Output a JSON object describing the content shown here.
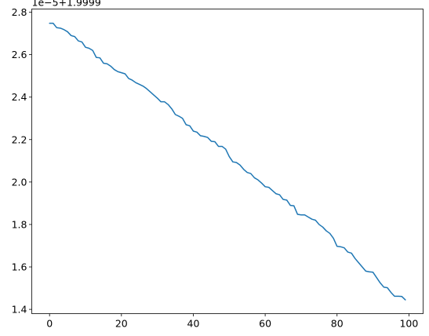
{
  "chart_data": {
    "type": "line",
    "title": "",
    "xlabel": "",
    "ylabel": "",
    "offset_text": "1e−5+1.9999",
    "xlim": [
      -4.95,
      103.95
    ],
    "ylim": [
      1.38,
      2.815
    ],
    "x_ticks": [
      0,
      20,
      40,
      60,
      80,
      100
    ],
    "x_tick_labels": [
      "0",
      "20",
      "40",
      "60",
      "80",
      "100"
    ],
    "y_ticks": [
      1.4,
      1.6,
      1.8,
      2.0,
      2.2,
      2.4,
      2.6,
      2.8
    ],
    "y_tick_labels": [
      "1.4",
      "1.6",
      "1.8",
      "2.0",
      "2.2",
      "2.4",
      "2.6",
      "2.8"
    ],
    "grid": false,
    "legend": "none",
    "series_color": "#1f77b4",
    "series": [
      {
        "name": "",
        "x": [
          0,
          1,
          2,
          3,
          4,
          5,
          6,
          7,
          8,
          9,
          10,
          11,
          12,
          13,
          14,
          15,
          16,
          17,
          18,
          19,
          20,
          21,
          22,
          23,
          24,
          25,
          26,
          27,
          28,
          29,
          30,
          31,
          32,
          33,
          34,
          35,
          36,
          37,
          38,
          39,
          40,
          41,
          42,
          43,
          44,
          45,
          46,
          47,
          48,
          49,
          50,
          51,
          52,
          53,
          54,
          55,
          56,
          57,
          58,
          59,
          60,
          61,
          62,
          63,
          64,
          65,
          66,
          67,
          68,
          69,
          70,
          71,
          72,
          73,
          74,
          75,
          76,
          77,
          78,
          79,
          80,
          81,
          82,
          83,
          84,
          85,
          86,
          87,
          88,
          89,
          90,
          91,
          92,
          93,
          94,
          95,
          96,
          97,
          98,
          99
        ],
        "y": [
          2.748,
          2.748,
          2.727,
          2.725,
          2.718,
          2.708,
          2.69,
          2.685,
          2.665,
          2.66,
          2.635,
          2.63,
          2.62,
          2.587,
          2.585,
          2.56,
          2.557,
          2.546,
          2.53,
          2.52,
          2.515,
          2.51,
          2.488,
          2.48,
          2.468,
          2.46,
          2.452,
          2.44,
          2.425,
          2.41,
          2.395,
          2.378,
          2.378,
          2.365,
          2.345,
          2.318,
          2.31,
          2.3,
          2.27,
          2.265,
          2.24,
          2.235,
          2.218,
          2.215,
          2.21,
          2.192,
          2.19,
          2.168,
          2.168,
          2.155,
          2.12,
          2.095,
          2.092,
          2.08,
          2.06,
          2.045,
          2.04,
          2.02,
          2.01,
          1.995,
          1.978,
          1.975,
          1.96,
          1.945,
          1.94,
          1.918,
          1.915,
          1.89,
          1.888,
          1.848,
          1.845,
          1.845,
          1.835,
          1.825,
          1.82,
          1.8,
          1.788,
          1.77,
          1.758,
          1.735,
          1.697,
          1.695,
          1.69,
          1.67,
          1.665,
          1.64,
          1.62,
          1.6,
          1.58,
          1.577,
          1.575,
          1.55,
          1.525,
          1.505,
          1.502,
          1.48,
          1.462,
          1.462,
          1.461,
          1.445
        ]
      }
    ]
  }
}
